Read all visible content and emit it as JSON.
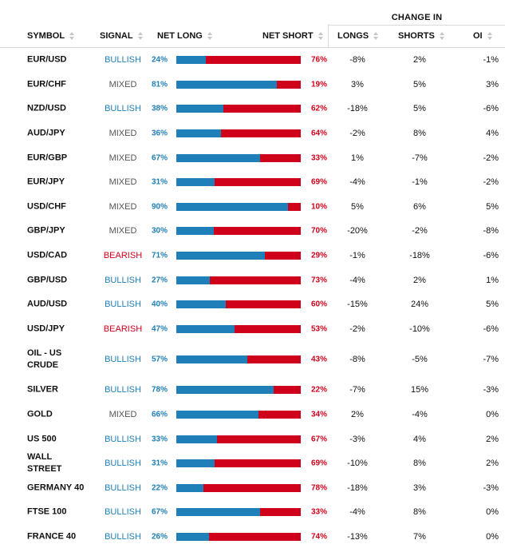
{
  "header": {
    "group_label": "CHANGE IN",
    "columns": {
      "symbol": "SYMBOL",
      "signal": "SIGNAL",
      "net_long": "NET LONG",
      "net_short": "NET SHORT",
      "longs": "LONGS",
      "shorts": "SHORTS",
      "oi": "OI"
    }
  },
  "colors": {
    "bullish": "#1f7fb8",
    "bearish": "#d0021b",
    "mixed": "#555555"
  },
  "rows": [
    {
      "symbol": "EUR/USD",
      "signal": "BULLISH",
      "net_long": "24%",
      "net_short": "76%",
      "long_fraction": 24,
      "longs": "-8%",
      "shorts": "2%",
      "oi": "-1%"
    },
    {
      "symbol": "EUR/CHF",
      "signal": "MIXED",
      "net_long": "81%",
      "net_short": "19%",
      "long_fraction": 81,
      "longs": "3%",
      "shorts": "5%",
      "oi": "3%"
    },
    {
      "symbol": "NZD/USD",
      "signal": "BULLISH",
      "net_long": "38%",
      "net_short": "62%",
      "long_fraction": 38,
      "longs": "-18%",
      "shorts": "5%",
      "oi": "-6%"
    },
    {
      "symbol": "AUD/JPY",
      "signal": "MIXED",
      "net_long": "36%",
      "net_short": "64%",
      "long_fraction": 36,
      "longs": "-2%",
      "shorts": "8%",
      "oi": "4%"
    },
    {
      "symbol": "EUR/GBP",
      "signal": "MIXED",
      "net_long": "67%",
      "net_short": "33%",
      "long_fraction": 67,
      "longs": "1%",
      "shorts": "-7%",
      "oi": "-2%"
    },
    {
      "symbol": "EUR/JPY",
      "signal": "MIXED",
      "net_long": "31%",
      "net_short": "69%",
      "long_fraction": 31,
      "longs": "-4%",
      "shorts": "-1%",
      "oi": "-2%"
    },
    {
      "symbol": "USD/CHF",
      "signal": "MIXED",
      "net_long": "90%",
      "net_short": "10%",
      "long_fraction": 90,
      "longs": "5%",
      "shorts": "6%",
      "oi": "5%"
    },
    {
      "symbol": "GBP/JPY",
      "signal": "MIXED",
      "net_long": "30%",
      "net_short": "70%",
      "long_fraction": 30,
      "longs": "-20%",
      "shorts": "-2%",
      "oi": "-8%"
    },
    {
      "symbol": "USD/CAD",
      "signal": "BEARISH",
      "net_long": "71%",
      "net_short": "29%",
      "long_fraction": 71,
      "longs": "-1%",
      "shorts": "-18%",
      "oi": "-6%"
    },
    {
      "symbol": "GBP/USD",
      "signal": "BULLISH",
      "net_long": "27%",
      "net_short": "73%",
      "long_fraction": 27,
      "longs": "-4%",
      "shorts": "2%",
      "oi": "1%"
    },
    {
      "symbol": "AUD/USD",
      "signal": "BULLISH",
      "net_long": "40%",
      "net_short": "60%",
      "long_fraction": 40,
      "longs": "-15%",
      "shorts": "24%",
      "oi": "5%"
    },
    {
      "symbol": "USD/JPY",
      "signal": "BEARISH",
      "net_long": "47%",
      "net_short": "53%",
      "long_fraction": 47,
      "longs": "-2%",
      "shorts": "-10%",
      "oi": "-6%"
    },
    {
      "symbol": "OIL - US CRUDE",
      "signal": "BULLISH",
      "net_long": "57%",
      "net_short": "43%",
      "long_fraction": 57,
      "longs": "-8%",
      "shorts": "-5%",
      "oi": "-7%"
    },
    {
      "symbol": "SILVER",
      "signal": "BULLISH",
      "net_long": "78%",
      "net_short": "22%",
      "long_fraction": 78,
      "longs": "-7%",
      "shorts": "15%",
      "oi": "-3%"
    },
    {
      "symbol": "GOLD",
      "signal": "MIXED",
      "net_long": "66%",
      "net_short": "34%",
      "long_fraction": 66,
      "longs": "2%",
      "shorts": "-4%",
      "oi": "0%"
    },
    {
      "symbol": "US 500",
      "signal": "BULLISH",
      "net_long": "33%",
      "net_short": "67%",
      "long_fraction": 33,
      "longs": "-3%",
      "shorts": "4%",
      "oi": "2%"
    },
    {
      "symbol": "WALL STREET",
      "signal": "BULLISH",
      "net_long": "31%",
      "net_short": "69%",
      "long_fraction": 31,
      "longs": "-10%",
      "shorts": "8%",
      "oi": "2%"
    },
    {
      "symbol": "GERMANY 40",
      "signal": "BULLISH",
      "net_long": "22%",
      "net_short": "78%",
      "long_fraction": 22,
      "longs": "-18%",
      "shorts": "3%",
      "oi": "-3%"
    },
    {
      "symbol": "FTSE 100",
      "signal": "BULLISH",
      "net_long": "67%",
      "net_short": "33%",
      "long_fraction": 67,
      "longs": "-4%",
      "shorts": "8%",
      "oi": "0%"
    },
    {
      "symbol": "FRANCE 40",
      "signal": "BULLISH",
      "net_long": "26%",
      "net_short": "74%",
      "long_fraction": 26,
      "longs": "-13%",
      "shorts": "7%",
      "oi": "0%"
    }
  ]
}
